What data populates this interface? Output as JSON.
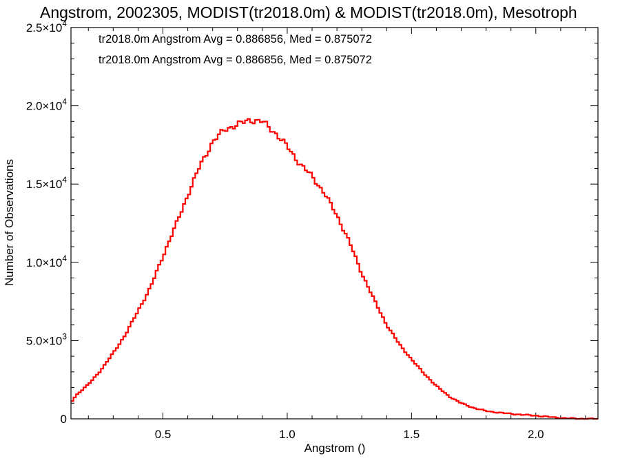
{
  "chart_data": {
    "type": "histogram-step",
    "title": "Angstrom, 2002305, MODIST(tr2018.0m) & MODIST(tr2018.0m), Mesotroph",
    "xlabel": "Angstrom ()",
    "ylabel": "Number of Observations",
    "xlim": [
      0.13,
      2.25
    ],
    "ylim": [
      0,
      25000
    ],
    "x_ticks": [
      {
        "value": 0.5,
        "label": "0.5"
      },
      {
        "value": 1.0,
        "label": "1.0"
      },
      {
        "value": 1.5,
        "label": "1.5"
      },
      {
        "value": 2.0,
        "label": "2.0"
      }
    ],
    "y_ticks": [
      {
        "value": 0,
        "mantissa": "0",
        "exp": ""
      },
      {
        "value": 5000,
        "mantissa": "5.0×10",
        "exp": "3"
      },
      {
        "value": 10000,
        "mantissa": "1.0×10",
        "exp": "4"
      },
      {
        "value": 15000,
        "mantissa": "1.5×10",
        "exp": "4"
      },
      {
        "value": 20000,
        "mantissa": "2.0×10",
        "exp": "4"
      },
      {
        "value": 25000,
        "mantissa": "2.5×10",
        "exp": "4"
      }
    ],
    "annotations": [
      {
        "text": "tr2018.0m Angstrom Avg = 0.886856, Med = 0.875072",
        "color": "#000000"
      },
      {
        "text": "tr2018.0m Angstrom Avg = 0.886856, Med = 0.875072",
        "color": "#ff0000"
      }
    ],
    "bin_width": 0.01,
    "series": [
      {
        "color": "#ff0000",
        "curve_points": [
          [
            0.13,
            1050
          ],
          [
            0.15,
            1500
          ],
          [
            0.2,
            2200
          ],
          [
            0.25,
            3100
          ],
          [
            0.3,
            4200
          ],
          [
            0.35,
            5400
          ],
          [
            0.4,
            6900
          ],
          [
            0.45,
            8400
          ],
          [
            0.5,
            10400
          ],
          [
            0.55,
            12300
          ],
          [
            0.6,
            14300
          ],
          [
            0.65,
            16200
          ],
          [
            0.7,
            17700
          ],
          [
            0.75,
            18500
          ],
          [
            0.8,
            18800
          ],
          [
            0.85,
            19100
          ],
          [
            0.9,
            19000
          ],
          [
            0.95,
            18300
          ],
          [
            1.0,
            17400
          ],
          [
            1.05,
            16300
          ],
          [
            1.1,
            15500
          ],
          [
            1.15,
            14400
          ],
          [
            1.2,
            13000
          ],
          [
            1.25,
            11300
          ],
          [
            1.3,
            9300
          ],
          [
            1.35,
            7600
          ],
          [
            1.4,
            6000
          ],
          [
            1.45,
            4800
          ],
          [
            1.5,
            3800
          ],
          [
            1.55,
            2900
          ],
          [
            1.6,
            2100
          ],
          [
            1.65,
            1450
          ],
          [
            1.7,
            1000
          ],
          [
            1.75,
            700
          ],
          [
            1.8,
            500
          ],
          [
            1.85,
            400
          ],
          [
            1.9,
            320
          ],
          [
            1.95,
            260
          ],
          [
            2.0,
            200
          ],
          [
            2.05,
            130
          ],
          [
            2.1,
            60
          ],
          [
            2.15,
            20
          ],
          [
            2.2,
            5
          ],
          [
            2.25,
            0
          ]
        ]
      }
    ]
  }
}
